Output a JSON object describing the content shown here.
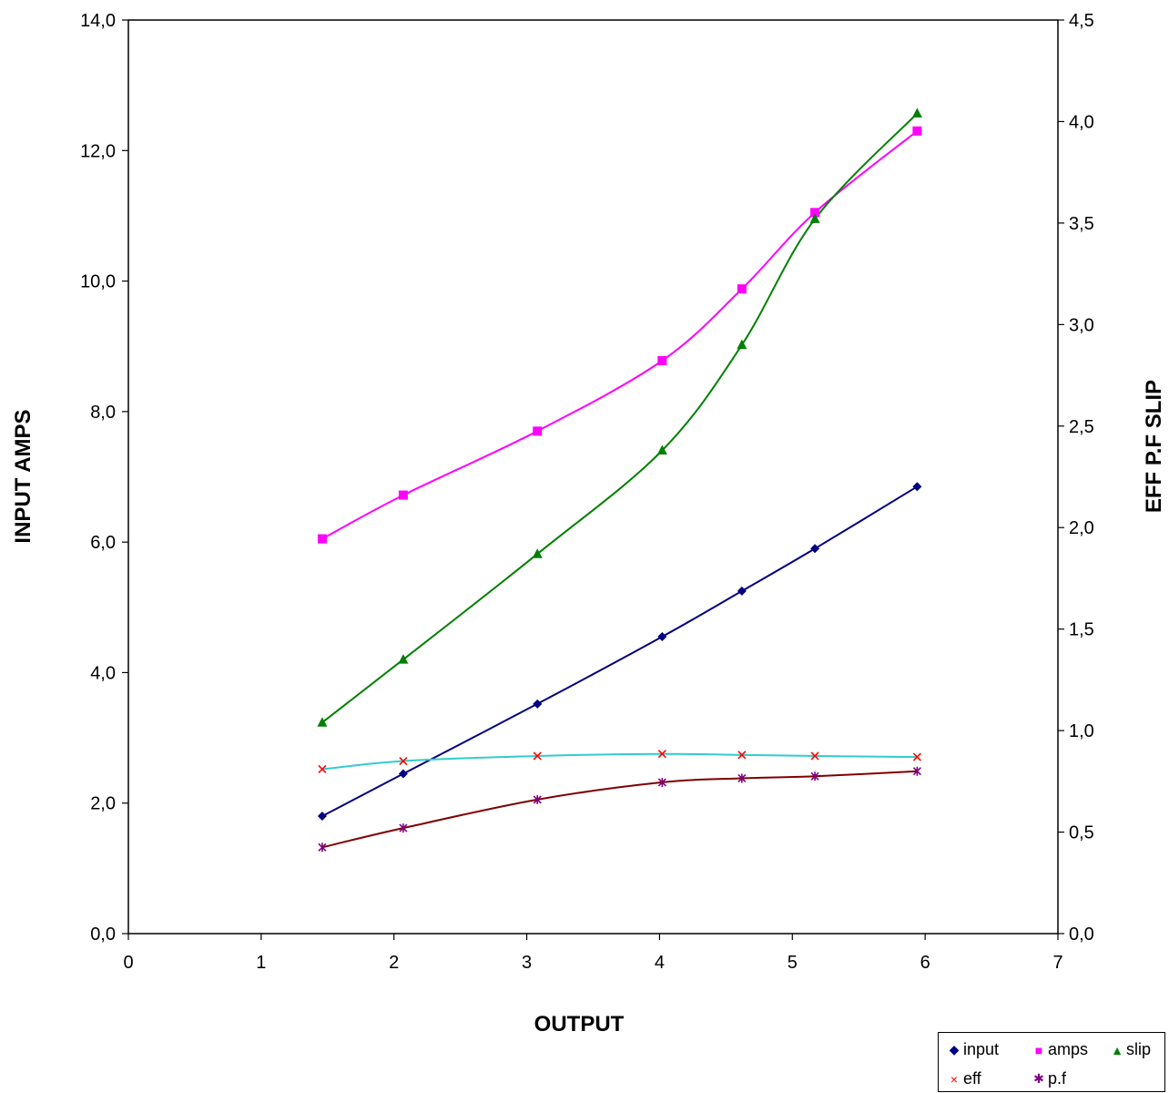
{
  "chart_data": {
    "type": "line",
    "xlabel": "OUTPUT",
    "ylabel_left": "INPUT  AMPS",
    "ylabel_right": "EFF  P.F  SLIP",
    "x_ticks": [
      "0",
      "1",
      "2",
      "3",
      "4",
      "5",
      "6",
      "7"
    ],
    "xlim": [
      0,
      7
    ],
    "y_left_ticks": [
      "0,0",
      "2,0",
      "4,0",
      "6,0",
      "8,0",
      "10,0",
      "12,0",
      "14,0"
    ],
    "ylim_left": [
      0,
      14
    ],
    "y_right_ticks": [
      "0,0",
      "0,5",
      "1,0",
      "1,5",
      "2,0",
      "2,5",
      "3,0",
      "3,5",
      "4,0",
      "4,5"
    ],
    "ylim_right": [
      0,
      4.5
    ],
    "grid": false,
    "legend_position": "bottom-right",
    "series": [
      {
        "name": "input",
        "axis": "left",
        "color": "#000080",
        "marker": "diamond",
        "x": [
          1.46,
          2.07,
          3.08,
          4.02,
          4.62,
          5.17,
          5.94
        ],
        "y": [
          1.8,
          2.45,
          3.52,
          4.55,
          5.25,
          5.9,
          6.85
        ]
      },
      {
        "name": "amps",
        "axis": "left",
        "color": "#ff00ff",
        "marker": "square",
        "x": [
          1.46,
          2.07,
          3.08,
          4.02,
          4.62,
          5.17,
          5.94
        ],
        "y": [
          6.05,
          6.72,
          7.7,
          8.78,
          9.88,
          11.05,
          12.3
        ]
      },
      {
        "name": "slip",
        "axis": "right",
        "color": "#008000",
        "marker": "triangle",
        "x": [
          1.46,
          2.07,
          3.08,
          4.02,
          4.62,
          5.17,
          5.94
        ],
        "y": [
          1.04,
          1.35,
          1.87,
          2.38,
          2.9,
          3.52,
          4.04
        ]
      },
      {
        "name": "eff",
        "axis": "right",
        "color": "#ff0000",
        "line_color": "#33cccc",
        "marker": "x",
        "x": [
          1.46,
          2.07,
          3.08,
          4.02,
          4.62,
          5.17,
          5.94
        ],
        "y": [
          0.81,
          0.85,
          0.875,
          0.885,
          0.88,
          0.875,
          0.87
        ]
      },
      {
        "name": "p.f",
        "axis": "right",
        "color": "#800080",
        "line_color": "#800000",
        "marker": "star",
        "x": [
          1.46,
          2.07,
          3.08,
          4.02,
          4.62,
          5.17,
          5.94
        ],
        "y": [
          0.425,
          0.52,
          0.66,
          0.745,
          0.765,
          0.775,
          0.8
        ]
      }
    ]
  }
}
